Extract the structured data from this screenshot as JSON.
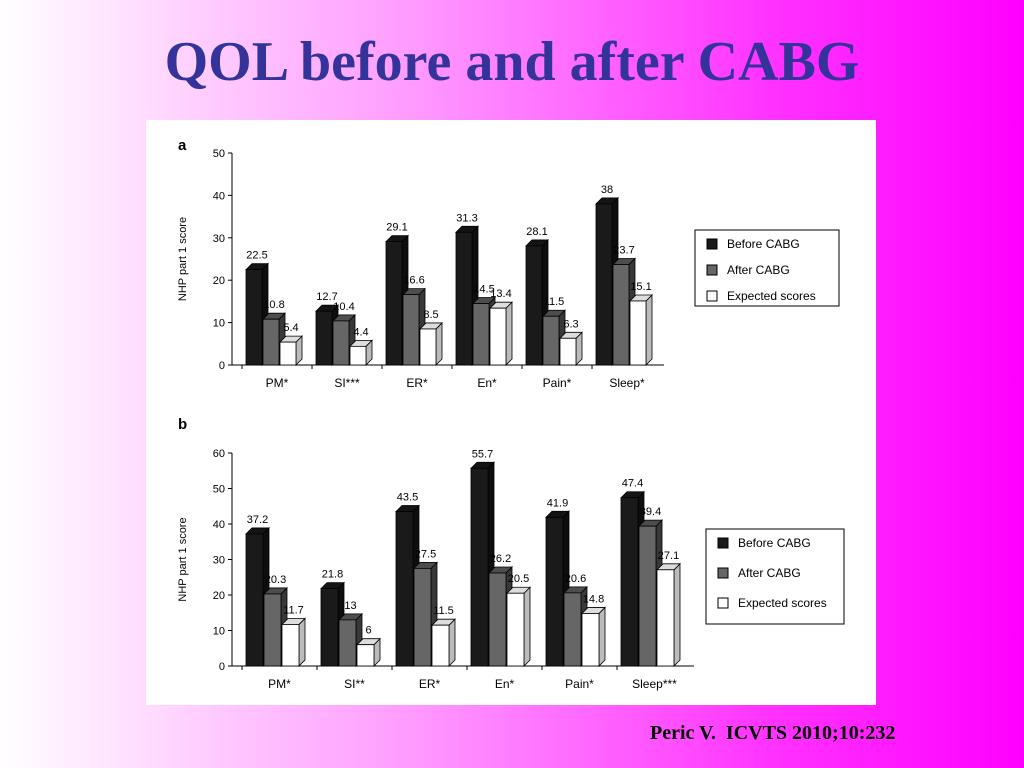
{
  "slide": {
    "title": "QOL before and after CABG",
    "citation": "Peric V.  ICVTS 2010;10:232"
  },
  "colors": {
    "title": "#333399",
    "before": "#1a1a1a",
    "after": "#666666",
    "expected": "#ffffff"
  },
  "chart_data": [
    {
      "panel_label": "a",
      "type": "bar",
      "ylabel": "NHP part 1 score",
      "ylim": [
        0,
        50
      ],
      "yticks": [
        0,
        10,
        20,
        30,
        40,
        50
      ],
      "categories": [
        "PM*",
        "SI***",
        "ER*",
        "En*",
        "Pain*",
        "Sleep*"
      ],
      "series": [
        {
          "name": "Before CABG",
          "values": [
            22.5,
            12.7,
            29.1,
            31.3,
            28.1,
            38
          ]
        },
        {
          "name": "After CABG",
          "values": [
            10.8,
            10.4,
            16.6,
            14.5,
            11.5,
            23.7
          ]
        },
        {
          "name": "Expected scores",
          "values": [
            5.4,
            4.4,
            8.5,
            13.4,
            6.3,
            15.1
          ]
        }
      ],
      "legend": "right"
    },
    {
      "panel_label": "b",
      "type": "bar",
      "ylabel": "NHP part 1 score",
      "ylim": [
        0,
        60
      ],
      "yticks": [
        0,
        10,
        20,
        30,
        40,
        50,
        60
      ],
      "categories": [
        "PM*",
        "SI**",
        "ER*",
        "En*",
        "Pain*",
        "Sleep***"
      ],
      "series": [
        {
          "name": "Before CABG",
          "values": [
            37.2,
            21.8,
            43.5,
            55.7,
            41.9,
            47.4
          ]
        },
        {
          "name": "After CABG",
          "values": [
            20.3,
            13,
            27.5,
            26.2,
            20.6,
            39.4
          ]
        },
        {
          "name": "Expected scores",
          "values": [
            11.7,
            6,
            11.5,
            20.5,
            14.8,
            27.1
          ]
        }
      ],
      "legend": "right"
    }
  ]
}
